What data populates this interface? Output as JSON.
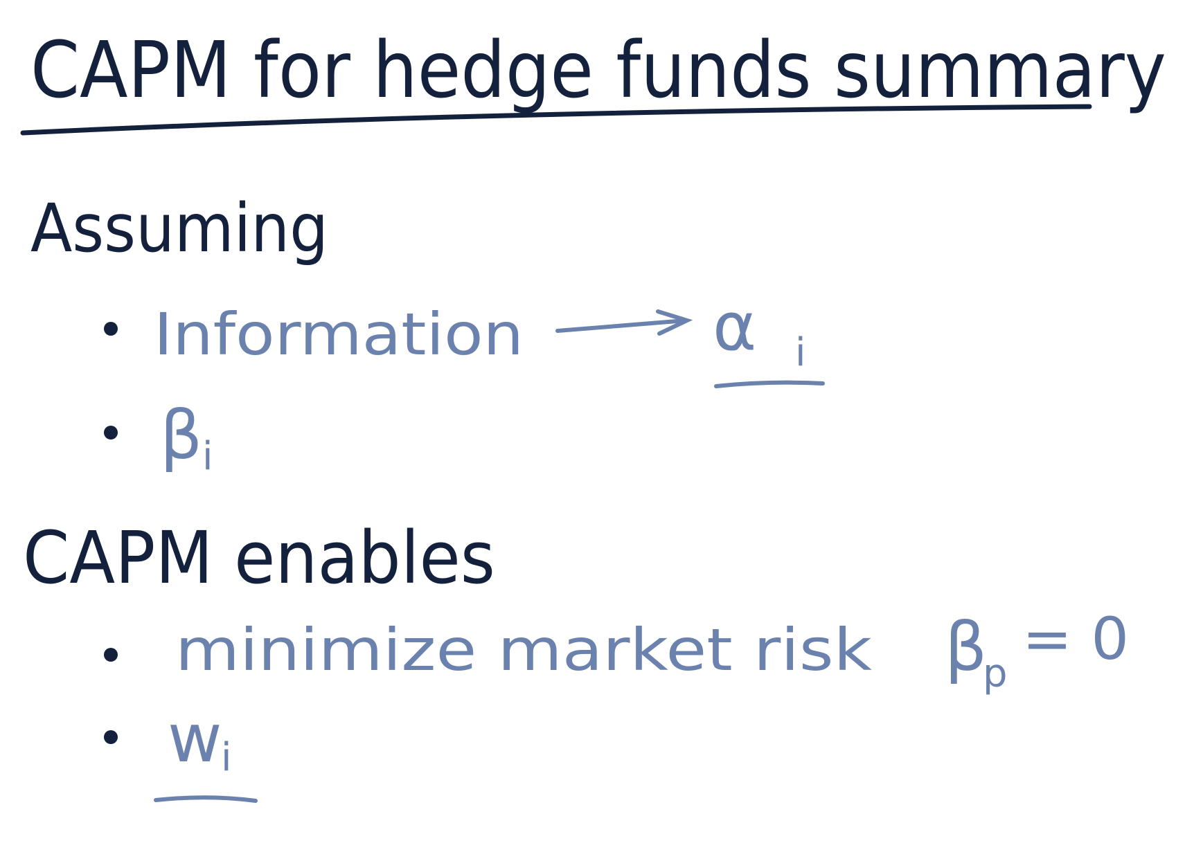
{
  "title": "CAPM for hedge funds summary",
  "sections": [
    {
      "heading": "Assuming",
      "items": [
        {
          "text": "Information",
          "result": {
            "symbol": "α",
            "subscript": "i"
          }
        },
        {
          "symbol": "β",
          "subscript": "i"
        }
      ]
    },
    {
      "heading": "CAPM enables",
      "items": [
        {
          "text": "minimize market risk",
          "result": {
            "symbol": "β",
            "subscript": "p",
            "equals": "= 0"
          }
        },
        {
          "symbol": "w",
          "subscript": "i"
        }
      ]
    }
  ]
}
